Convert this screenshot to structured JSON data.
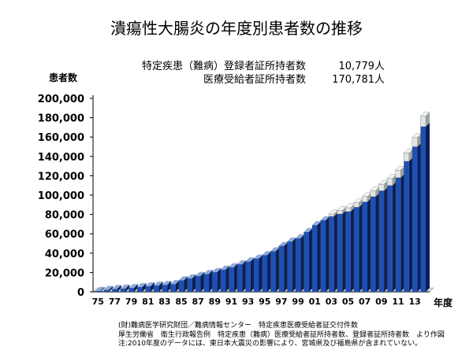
{
  "title": "潰瘍性大腸炎の年度別患者数の推移",
  "legend": [
    {
      "label": "特定疾患（難病）登録者証所持者数",
      "value": "10,779人"
    },
    {
      "label": "医療受給者証所持者数",
      "value": "170,781人"
    }
  ],
  "ylabel": "患者数",
  "xlabel": "年度",
  "source_lines": [
    "(財)難病医学研究財団／難病情報センター　特定疾患医療受給者証交付件数",
    "厚生労働省　衛生行政報告例　特定疾患（難病）医療受給者証所持者数、登録者証所持者数　より作図",
    "注:2010年度のデータには、東日本大震災の影響により、宮城県及び福島県が含まれていない。"
  ],
  "colors": {
    "bar_front": "#1f4fb0",
    "bar_top": "#8ea9dd",
    "bar_side": "#0b1f52",
    "registered": "#e2e6e6"
  },
  "chart_data": {
    "type": "bar",
    "stacked": true,
    "x": [
      1975,
      1976,
      1977,
      1978,
      1979,
      1980,
      1981,
      1982,
      1983,
      1984,
      1985,
      1986,
      1987,
      1988,
      1989,
      1990,
      1991,
      1992,
      1993,
      1994,
      1995,
      1996,
      1997,
      1998,
      1999,
      2000,
      2001,
      2002,
      2003,
      2004,
      2005,
      2006,
      2007,
      2008,
      2009,
      2010,
      2011,
      2012,
      2013,
      2014
    ],
    "x_tick_labels": [
      "75",
      "",
      "77",
      "",
      "79",
      "",
      "81",
      "",
      "83",
      "",
      "85",
      "",
      "87",
      "",
      "89",
      "",
      "91",
      "",
      "93",
      "",
      "95",
      "",
      "97",
      "",
      "99",
      "",
      "01",
      "",
      "03",
      "",
      "05",
      "",
      "07",
      "",
      "09",
      "",
      "11",
      "",
      "13",
      ""
    ],
    "series": [
      {
        "name": "医療受給者証所持者数",
        "values": [
          1000,
          2000,
          3000,
          3500,
          4000,
          5000,
          5800,
          6500,
          7200,
          8000,
          12000,
          14000,
          16500,
          18500,
          20500,
          23000,
          25500,
          28500,
          31500,
          34500,
          38000,
          42000,
          47500,
          52000,
          55500,
          62000,
          69000,
          74000,
          78000,
          80500,
          83000,
          87500,
          93000,
          98500,
          104500,
          110000,
          118000,
          135000,
          150000,
          170781
        ]
      },
      {
        "name": "特定疾患（難病）登録者証所持者数",
        "values": [
          0,
          0,
          0,
          0,
          0,
          0,
          0,
          0,
          0,
          0,
          0,
          0,
          0,
          0,
          0,
          0,
          0,
          0,
          0,
          0,
          0,
          0,
          0,
          0,
          0,
          0,
          0,
          0,
          2500,
          3500,
          4000,
          4800,
          5500,
          6200,
          6800,
          7200,
          7800,
          8500,
          9500,
          10779
        ]
      }
    ],
    "yticks": [
      "0",
      "20,000",
      "40,000",
      "60,000",
      "80,000",
      "100,000",
      "120,000",
      "140,000",
      "160,000",
      "180,000",
      "200,000"
    ],
    "ylim": [
      0,
      200000
    ],
    "grid": false
  }
}
